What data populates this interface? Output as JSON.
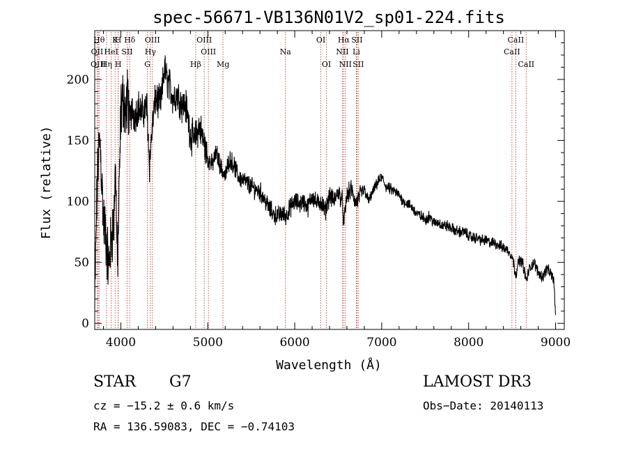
{
  "chart_data": {
    "type": "line",
    "title": "spec-56671-VB136N01V2_sp01-224.fits",
    "xlabel": "Wavelength (Å)",
    "ylabel": "Flux (relative)",
    "xlim": [
      3700,
      9100
    ],
    "ylim": [
      -5,
      240
    ],
    "xticks": [
      4000,
      5000,
      6000,
      7000,
      8000,
      9000
    ],
    "yticks": [
      0,
      50,
      100,
      150,
      200
    ],
    "x_minor_step": 200,
    "y_minor_step": 10,
    "grid": false,
    "series": [
      {
        "name": "flux",
        "anchors": [
          [
            3700,
            10
          ],
          [
            3720,
            90
          ],
          [
            3740,
            135
          ],
          [
            3760,
            150
          ],
          [
            3780,
            120
          ],
          [
            3800,
            85
          ],
          [
            3830,
            70
          ],
          [
            3860,
            45
          ],
          [
            3890,
            70
          ],
          [
            3920,
            85
          ],
          [
            3940,
            130
          ],
          [
            3960,
            45
          ],
          [
            3980,
            100
          ],
          [
            4000,
            175
          ],
          [
            4030,
            185
          ],
          [
            4060,
            170
          ],
          [
            4080,
            190
          ],
          [
            4100,
            165
          ],
          [
            4130,
            175
          ],
          [
            4160,
            170
          ],
          [
            4200,
            178
          ],
          [
            4240,
            172
          ],
          [
            4270,
            175
          ],
          [
            4300,
            178
          ],
          [
            4330,
            130
          ],
          [
            4360,
            160
          ],
          [
            4400,
            185
          ],
          [
            4440,
            180
          ],
          [
            4470,
            185
          ],
          [
            4500,
            210
          ],
          [
            4530,
            200
          ],
          [
            4560,
            195
          ],
          [
            4600,
            185
          ],
          [
            4650,
            188
          ],
          [
            4700,
            180
          ],
          [
            4750,
            178
          ],
          [
            4800,
            155
          ],
          [
            4850,
            150
          ],
          [
            4900,
            162
          ],
          [
            4950,
            150
          ],
          [
            5000,
            135
          ],
          [
            5050,
            130
          ],
          [
            5100,
            140
          ],
          [
            5150,
            128
          ],
          [
            5200,
            120
          ],
          [
            5250,
            135
          ],
          [
            5300,
            130
          ],
          [
            5350,
            120
          ],
          [
            5400,
            118
          ],
          [
            5450,
            115
          ],
          [
            5500,
            112
          ],
          [
            5550,
            110
          ],
          [
            5600,
            108
          ],
          [
            5650,
            102
          ],
          [
            5700,
            95
          ],
          [
            5750,
            90
          ],
          [
            5800,
            88
          ],
          [
            5850,
            90
          ],
          [
            5900,
            88
          ],
          [
            5950,
            95
          ],
          [
            6000,
            100
          ],
          [
            6050,
            98
          ],
          [
            6100,
            100
          ],
          [
            6150,
            95
          ],
          [
            6200,
            105
          ],
          [
            6250,
            98
          ],
          [
            6300,
            100
          ],
          [
            6350,
            92
          ],
          [
            6400,
            105
          ],
          [
            6450,
            100
          ],
          [
            6500,
            108
          ],
          [
            6550,
            100
          ],
          [
            6563,
            80
          ],
          [
            6600,
            105
          ],
          [
            6650,
            110
          ],
          [
            6700,
            98
          ],
          [
            6750,
            105
          ],
          [
            6800,
            110
          ],
          [
            6850,
            100
          ],
          [
            6900,
            108
          ],
          [
            6950,
            115
          ],
          [
            7000,
            120
          ],
          [
            7050,
            112
          ],
          [
            7100,
            110
          ],
          [
            7150,
            108
          ],
          [
            7200,
            105
          ],
          [
            7250,
            100
          ],
          [
            7300,
            98
          ],
          [
            7350,
            95
          ],
          [
            7400,
            90
          ],
          [
            7450,
            88
          ],
          [
            7500,
            85
          ],
          [
            7550,
            88
          ],
          [
            7600,
            82
          ],
          [
            7650,
            83
          ],
          [
            7700,
            80
          ],
          [
            7750,
            80
          ],
          [
            7800,
            78
          ],
          [
            7850,
            76
          ],
          [
            7900,
            75
          ],
          [
            7950,
            75
          ],
          [
            8000,
            72
          ],
          [
            8050,
            70
          ],
          [
            8100,
            70
          ],
          [
            8150,
            68
          ],
          [
            8200,
            68
          ],
          [
            8250,
            66
          ],
          [
            8300,
            66
          ],
          [
            8350,
            64
          ],
          [
            8400,
            62
          ],
          [
            8450,
            60
          ],
          [
            8500,
            55
          ],
          [
            8542,
            40
          ],
          [
            8580,
            52
          ],
          [
            8620,
            50
          ],
          [
            8662,
            35
          ],
          [
            8700,
            45
          ],
          [
            8750,
            50
          ],
          [
            8800,
            42
          ],
          [
            8850,
            38
          ],
          [
            8900,
            45
          ],
          [
            8950,
            40
          ],
          [
            8980,
            35
          ],
          [
            9000,
            5
          ]
        ]
      }
    ],
    "lines": [
      {
        "label": "Hθ",
        "wl": 3750,
        "row": 0
      },
      {
        "label": "OII",
        "wl": 3727,
        "row": 1
      },
      {
        "label": "OIII",
        "wl": 3740,
        "row": 2
      },
      {
        "label": "K",
        "wl": 3934,
        "row": 0
      },
      {
        "label": "H",
        "wl": 3969,
        "row": 0
      },
      {
        "label": "HeI",
        "wl": 3889,
        "row": 1
      },
      {
        "label": "Hη",
        "wl": 3835,
        "row": 2
      },
      {
        "label": "H",
        "wl": 3970,
        "row": 2
      },
      {
        "label": "Hδ",
        "wl": 4102,
        "row": 0
      },
      {
        "label": "SII",
        "wl": 4072,
        "row": 1
      },
      {
        "label": "OIII",
        "wl": 4363,
        "row": 0
      },
      {
        "label": "Hγ",
        "wl": 4340,
        "row": 1
      },
      {
        "label": "G",
        "wl": 4305,
        "row": 2
      },
      {
        "label": "Hβ",
        "wl": 4861,
        "row": 2
      },
      {
        "label": "OIII",
        "wl": 4959,
        "row": 0
      },
      {
        "label": "OIII",
        "wl": 5007,
        "row": 1
      },
      {
        "label": "Mg",
        "wl": 5175,
        "row": 2
      },
      {
        "label": "Na",
        "wl": 5893,
        "row": 1
      },
      {
        "label": "OI",
        "wl": 6300,
        "row": 0
      },
      {
        "label": "OI",
        "wl": 6364,
        "row": 2
      },
      {
        "label": "Hα",
        "wl": 6563,
        "row": 0
      },
      {
        "label": "SII",
        "wl": 6716,
        "row": 0
      },
      {
        "label": "NII",
        "wl": 6548,
        "row": 1
      },
      {
        "label": "Li",
        "wl": 6708,
        "row": 1
      },
      {
        "label": "NII",
        "wl": 6583,
        "row": 2
      },
      {
        "label": "SII",
        "wl": 6731,
        "row": 2
      },
      {
        "label": "CaII",
        "wl": 8542,
        "row": 0
      },
      {
        "label": "CaII",
        "wl": 8498,
        "row": 1
      },
      {
        "label": "CaII",
        "wl": 8662,
        "row": 2
      }
    ]
  },
  "info": {
    "object_class": "STAR",
    "subclass": "G7",
    "survey": "LAMOST DR3",
    "cz": "cz = −15.2 ± 0.6 km/s",
    "obs_date": "Obs−Date: 20140113",
    "coords": "RA = 136.59083, DEC =  −0.74103"
  }
}
